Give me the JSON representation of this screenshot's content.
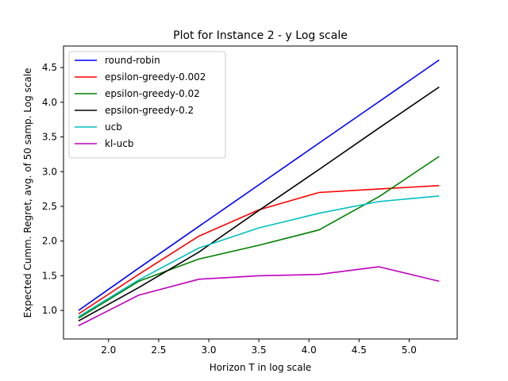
{
  "chart_data": {
    "type": "line",
    "title": "Plot for Instance 2 - y Log scale",
    "xlabel": "Horizon T in log scale",
    "ylabel": "Expected Cumm. Regret, avg. of 50 samp. Log scale",
    "xlim": [
      1.55,
      5.48
    ],
    "ylim": [
      0.59,
      4.81
    ],
    "xticks": [
      2.0,
      2.5,
      3.0,
      3.5,
      4.0,
      4.5,
      5.0
    ],
    "xtick_labels": [
      "2.0",
      "2.5",
      "3.0",
      "3.5",
      "4.0",
      "4.5",
      "5.0"
    ],
    "yticks": [
      1.0,
      1.5,
      2.0,
      2.5,
      3.0,
      3.5,
      4.0,
      4.5
    ],
    "ytick_labels": [
      "1.0",
      "1.5",
      "2.0",
      "2.5",
      "3.0",
      "3.5",
      "4.0",
      "4.5"
    ],
    "grid": false,
    "legend_position": "top-left",
    "x": [
      1.7,
      2.3,
      2.9,
      3.5,
      4.1,
      4.7,
      5.3
    ],
    "series": [
      {
        "name": "round-robin",
        "color": "#0000ff",
        "values": [
          1.0,
          1.61,
          2.21,
          2.81,
          3.41,
          4.01,
          4.61
        ]
      },
      {
        "name": "epsilon-greedy-0.002",
        "color": "#ff0000",
        "values": [
          0.95,
          1.52,
          2.07,
          2.45,
          2.7,
          2.75,
          2.8
        ]
      },
      {
        "name": "epsilon-greedy-0.02",
        "color": "#008000",
        "values": [
          0.89,
          1.42,
          1.74,
          1.94,
          2.16,
          2.64,
          3.22
        ]
      },
      {
        "name": "epsilon-greedy-0.2",
        "color": "#000000",
        "values": [
          0.85,
          1.33,
          1.84,
          2.44,
          3.03,
          3.63,
          4.22
        ]
      },
      {
        "name": "ucb",
        "color": "#00bfbf",
        "values": [
          0.91,
          1.44,
          1.9,
          2.19,
          2.4,
          2.57,
          2.65
        ]
      },
      {
        "name": "kl-ucb",
        "color": "#bf00bf",
        "values": [
          0.78,
          1.22,
          1.45,
          1.5,
          1.52,
          1.63,
          1.42
        ]
      }
    ]
  }
}
